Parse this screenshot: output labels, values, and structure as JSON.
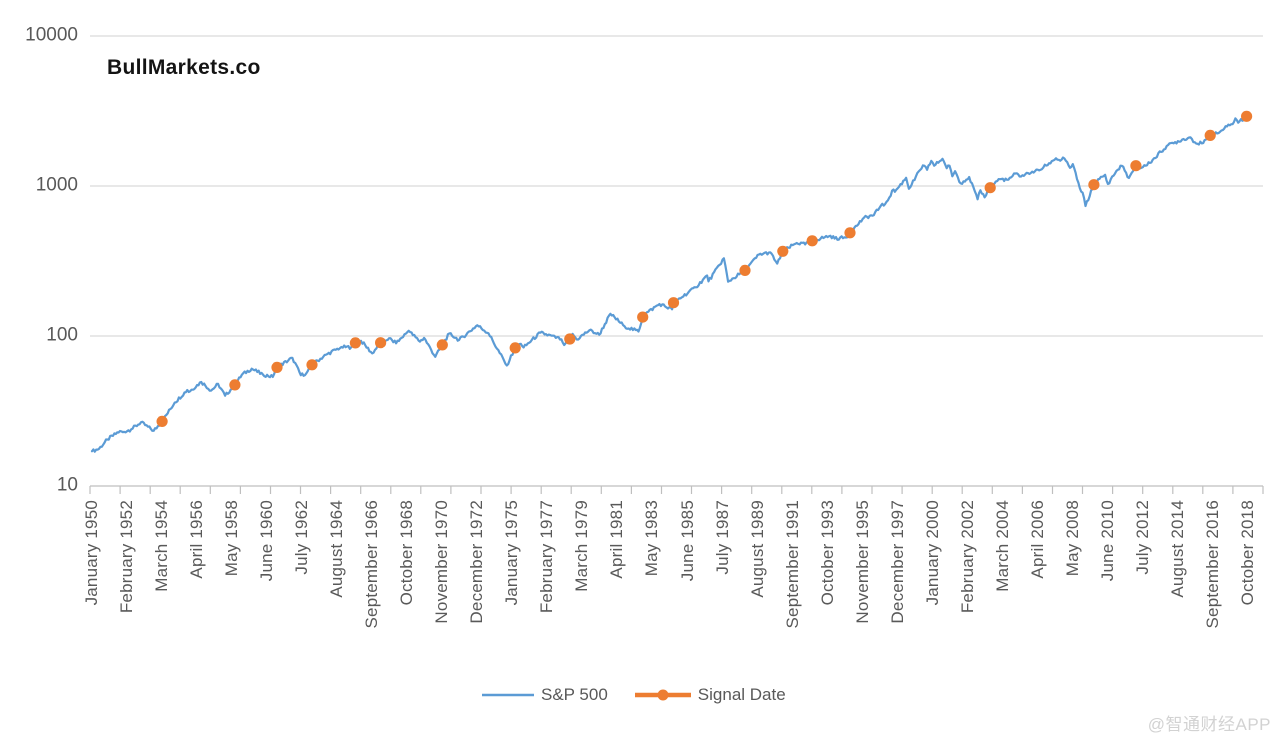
{
  "title": "BullMarkets.co",
  "watermark": {
    "text": "@智通财经APP"
  },
  "legend": {
    "position": "bottom",
    "items": [
      {
        "label": "S&P 500",
        "swatch": "line"
      },
      {
        "label": "Signal Date",
        "swatch": "line-with-marker"
      }
    ]
  },
  "colors": {
    "sp500_line": "#5B9BD5",
    "signal_marker": "#ED7D31",
    "gridline": "#D9D9D9",
    "axis_line": "#BFBFBF",
    "axis_text": "#595959",
    "title_text": "#141414",
    "watermark_text": "#D2D2D2"
  },
  "chart_data": {
    "type": "line",
    "title": "BullMarkets.co",
    "grid": "horizontal",
    "legend_position": "bottom",
    "y_axis": {
      "scale": "log",
      "range": [
        10,
        10000
      ],
      "ticks": [
        10,
        100,
        1000,
        10000
      ],
      "tick_labels": [
        "10",
        "100",
        "1000",
        "10000"
      ]
    },
    "x_axis": {
      "start": "January 1950",
      "end": "October 2018",
      "label_step_months": 25,
      "labels": [
        "January 1950",
        "February 1952",
        "March 1954",
        "April 1956",
        "May 1958",
        "June 1960",
        "July 1962",
        "August 1964",
        "September 1966",
        "October 1968",
        "November 1970",
        "December 1972",
        "January 1975",
        "February 1977",
        "March 1979",
        "April 1981",
        "May 1983",
        "June 1985",
        "July 1987",
        "August 1989",
        "September 1991",
        "October 1993",
        "November 1995",
        "December 1997",
        "January 2000",
        "February 2002",
        "March 2004",
        "April 2006",
        "May 2008",
        "June 2010",
        "July 2012",
        "August 2014",
        "September 2016",
        "October 2018"
      ]
    },
    "series": [
      {
        "name": "S&P 500",
        "type": "line",
        "color": "#5B9BD5",
        "points_format": [
          "year",
          "month",
          "value"
        ],
        "points": [
          [
            1950,
            1,
            17.05
          ],
          [
            1950,
            6,
            17.69
          ],
          [
            1950,
            12,
            20.43
          ],
          [
            1951,
            9,
            23.26
          ],
          [
            1951,
            11,
            22.88
          ],
          [
            1952,
            5,
            23.86
          ],
          [
            1952,
            12,
            26.57
          ],
          [
            1953,
            9,
            23.35
          ],
          [
            1954,
            3,
            26.94
          ],
          [
            1954,
            12,
            35.98
          ],
          [
            1955,
            9,
            43.67
          ],
          [
            1955,
            10,
            42.34
          ],
          [
            1956,
            7,
            49.39
          ],
          [
            1957,
            2,
            43.26
          ],
          [
            1957,
            7,
            47.91
          ],
          [
            1957,
            12,
            39.99
          ],
          [
            1958,
            7,
            47.19
          ],
          [
            1958,
            12,
            55.21
          ],
          [
            1959,
            7,
            60.51
          ],
          [
            1960,
            3,
            55.34
          ],
          [
            1960,
            10,
            53.39
          ],
          [
            1961,
            1,
            61.78
          ],
          [
            1961,
            12,
            71.55
          ],
          [
            1962,
            6,
            54.75
          ],
          [
            1962,
            10,
            56.52
          ],
          [
            1963,
            2,
            64.29
          ],
          [
            1963,
            12,
            75.02
          ],
          [
            1964,
            11,
            84.42
          ],
          [
            1965,
            6,
            84.12
          ],
          [
            1965,
            9,
            89.96
          ],
          [
            1966,
            1,
            92.88
          ],
          [
            1966,
            9,
            76.56
          ],
          [
            1967,
            3,
            90.2
          ],
          [
            1967,
            9,
            96.71
          ],
          [
            1968,
            2,
            89.36
          ],
          [
            1968,
            11,
            108.37
          ],
          [
            1969,
            7,
            91.83
          ],
          [
            1969,
            10,
            97.12
          ],
          [
            1970,
            6,
            72.72
          ],
          [
            1970,
            11,
            87.2
          ],
          [
            1971,
            4,
            103.95
          ],
          [
            1971,
            11,
            93.99
          ],
          [
            1972,
            12,
            118.05
          ],
          [
            1973,
            8,
            104.25
          ],
          [
            1974,
            9,
            63.54
          ],
          [
            1975,
            3,
            83.36
          ],
          [
            1975,
            7,
            88.75
          ],
          [
            1975,
            9,
            83.87
          ],
          [
            1976,
            9,
            105.24
          ],
          [
            1977,
            12,
            95.1
          ],
          [
            1978,
            2,
            87.04
          ],
          [
            1978,
            6,
            95.53
          ],
          [
            1978,
            8,
            103.29
          ],
          [
            1978,
            11,
            94.7
          ],
          [
            1979,
            8,
            109.32
          ],
          [
            1980,
            3,
            102.09
          ],
          [
            1980,
            11,
            140.52
          ],
          [
            1981,
            9,
            116.18
          ],
          [
            1982,
            7,
            107.09
          ],
          [
            1982,
            10,
            133.71
          ],
          [
            1982,
            12,
            140.64
          ],
          [
            1983,
            10,
            163.55
          ],
          [
            1984,
            7,
            150.66
          ],
          [
            1984,
            8,
            166.68
          ],
          [
            1985,
            12,
            211.28
          ],
          [
            1986,
            8,
            252.93
          ],
          [
            1986,
            9,
            231.32
          ],
          [
            1987,
            8,
            329.8
          ],
          [
            1987,
            11,
            230.3
          ],
          [
            1988,
            11,
            273.7
          ],
          [
            1989,
            9,
            349.15
          ],
          [
            1990,
            5,
            361.23
          ],
          [
            1990,
            10,
            304.0
          ],
          [
            1991,
            2,
            367.07
          ],
          [
            1991,
            12,
            417.09
          ],
          [
            1992,
            6,
            408.14
          ],
          [
            1992,
            11,
            431.35
          ],
          [
            1993,
            12,
            466.45
          ],
          [
            1994,
            3,
            445.77
          ],
          [
            1994,
            11,
            453.69
          ],
          [
            1995,
            2,
            487.39
          ],
          [
            1995,
            12,
            615.93
          ],
          [
            1996,
            7,
            639.95
          ],
          [
            1996,
            12,
            740.74
          ],
          [
            1997,
            3,
            757.12
          ],
          [
            1997,
            9,
            947.28
          ],
          [
            1997,
            10,
            914.62
          ],
          [
            1998,
            6,
            1133.84
          ],
          [
            1998,
            8,
            957.28
          ],
          [
            1999,
            6,
            1372.71
          ],
          [
            1999,
            9,
            1282.71
          ],
          [
            1999,
            12,
            1469.25
          ],
          [
            2000,
            2,
            1366.42
          ],
          [
            2000,
            8,
            1517.68
          ],
          [
            2000,
            11,
            1314.95
          ],
          [
            2001,
            1,
            1366.01
          ],
          [
            2001,
            3,
            1160.33
          ],
          [
            2001,
            5,
            1255.82
          ],
          [
            2001,
            9,
            1040.94
          ],
          [
            2002,
            3,
            1147.39
          ],
          [
            2002,
            9,
            815.28
          ],
          [
            2002,
            11,
            936.31
          ],
          [
            2003,
            2,
            841.15
          ],
          [
            2003,
            6,
            974.5
          ],
          [
            2003,
            12,
            1111.92
          ],
          [
            2004,
            7,
            1101.72
          ],
          [
            2004,
            12,
            1211.92
          ],
          [
            2005,
            4,
            1156.85
          ],
          [
            2005,
            12,
            1248.29
          ],
          [
            2006,
            5,
            1270.09
          ],
          [
            2006,
            12,
            1418.3
          ],
          [
            2007,
            5,
            1530.62
          ],
          [
            2007,
            8,
            1473.99
          ],
          [
            2007,
            10,
            1549.38
          ],
          [
            2008,
            3,
            1322.7
          ],
          [
            2008,
            5,
            1400.38
          ],
          [
            2008,
            10,
            968.75
          ],
          [
            2008,
            12,
            903.25
          ],
          [
            2009,
            2,
            735.09
          ],
          [
            2009,
            8,
            1020.62
          ],
          [
            2009,
            12,
            1115.1
          ],
          [
            2010,
            4,
            1186.69
          ],
          [
            2010,
            6,
            1030.71
          ],
          [
            2010,
            12,
            1257.64
          ],
          [
            2011,
            4,
            1363.61
          ],
          [
            2011,
            9,
            1131.42
          ],
          [
            2011,
            12,
            1257.6
          ],
          [
            2012,
            2,
            1365.68
          ],
          [
            2012,
            5,
            1310.33
          ],
          [
            2012,
            12,
            1426.19
          ],
          [
            2013,
            12,
            1848.36
          ],
          [
            2014,
            12,
            2058.9
          ],
          [
            2015,
            5,
            2107.39
          ],
          [
            2015,
            9,
            1920.03
          ],
          [
            2016,
            2,
            1932.23
          ],
          [
            2016,
            7,
            2173.6
          ],
          [
            2016,
            12,
            2238.83
          ],
          [
            2017,
            12,
            2673.61
          ],
          [
            2018,
            1,
            2823.81
          ],
          [
            2018,
            3,
            2640.87
          ],
          [
            2018,
            9,
            2913.98
          ],
          [
            2018,
            10,
            2925.0
          ]
        ]
      },
      {
        "name": "Signal Date",
        "type": "scatter",
        "color": "#ED7D31",
        "points_format": [
          "date",
          "value"
        ],
        "points": [
          [
            "March 1954",
            26.94
          ],
          [
            "July 1958",
            47.19
          ],
          [
            "January 1961",
            61.78
          ],
          [
            "February 1963",
            64.29
          ],
          [
            "September 1965",
            89.96
          ],
          [
            "March 1967",
            90.2
          ],
          [
            "November 1970",
            87.2
          ],
          [
            "March 1975",
            83.36
          ],
          [
            "June 1978",
            95.53
          ],
          [
            "October 1982",
            133.71
          ],
          [
            "August 1984",
            166.68
          ],
          [
            "November 1988",
            273.7
          ],
          [
            "February 1991",
            367.07
          ],
          [
            "November 1992",
            431.35
          ],
          [
            "February 1995",
            487.39
          ],
          [
            "June 2003",
            974.5
          ],
          [
            "August 2009",
            1020.62
          ],
          [
            "February 2012",
            1365.68
          ],
          [
            "July 2016",
            2173.6
          ],
          [
            "September 2018",
            2913.98
          ]
        ]
      }
    ]
  }
}
